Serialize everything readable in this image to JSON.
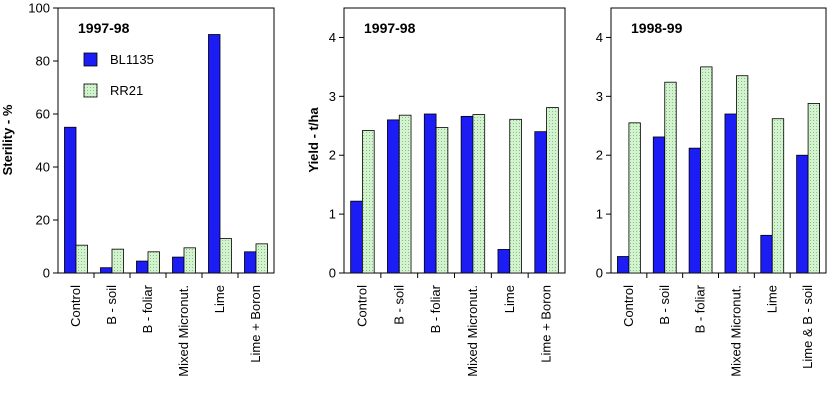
{
  "colors": {
    "s1": "#1c1cf5",
    "s2": "#d4f2cf",
    "s2_hatch": "#7fc77f"
  },
  "chart_data": [
    {
      "type": "bar",
      "title": "1997-98",
      "xlabel": "",
      "ylabel": "Sterility - %",
      "ylim": [
        0,
        100
      ],
      "yticks": [
        0,
        20,
        40,
        60,
        80,
        100
      ],
      "categories": [
        "Control",
        "B - soil",
        "B - foliar",
        "Mixed Micronut.",
        "Lime",
        "Lime + Boron"
      ],
      "series": [
        {
          "name": "BL1135",
          "values": [
            55,
            2,
            4.5,
            6,
            90,
            8
          ]
        },
        {
          "name": "RR21",
          "values": [
            10.5,
            9,
            8,
            9.5,
            13,
            11
          ]
        }
      ],
      "legend": "top-left",
      "grid": false
    },
    {
      "type": "bar",
      "title": "1997-98",
      "xlabel": "",
      "ylabel": "Yield - t/ha",
      "ylim": [
        0,
        4.5
      ],
      "yticks": [
        0,
        1,
        2,
        3,
        4
      ],
      "categories": [
        "Control",
        "B - soil",
        "B - foliar",
        "Mixed Micronut.",
        "Lime",
        "Lime + Boron"
      ],
      "series": [
        {
          "name": "BL1135",
          "values": [
            1.22,
            2.6,
            2.7,
            2.66,
            0.4,
            2.4
          ]
        },
        {
          "name": "RR21",
          "values": [
            2.42,
            2.68,
            2.47,
            2.69,
            2.61,
            2.81
          ]
        }
      ],
      "grid": false
    },
    {
      "type": "bar",
      "title": "1998-99",
      "xlabel": "",
      "ylabel": "",
      "ylim": [
        0,
        4.5
      ],
      "yticks": [
        0,
        1,
        2,
        3,
        4
      ],
      "categories": [
        "Control",
        "B - soil",
        "B - foliar",
        "Mixed Micronut.",
        "Lime",
        "Lime & B - soil"
      ],
      "series": [
        {
          "name": "BL1135",
          "values": [
            0.28,
            2.31,
            2.12,
            2.7,
            0.64,
            2.0
          ]
        },
        {
          "name": "RR21",
          "values": [
            2.55,
            3.24,
            3.5,
            3.35,
            2.62,
            2.88
          ]
        }
      ],
      "grid": false
    }
  ]
}
